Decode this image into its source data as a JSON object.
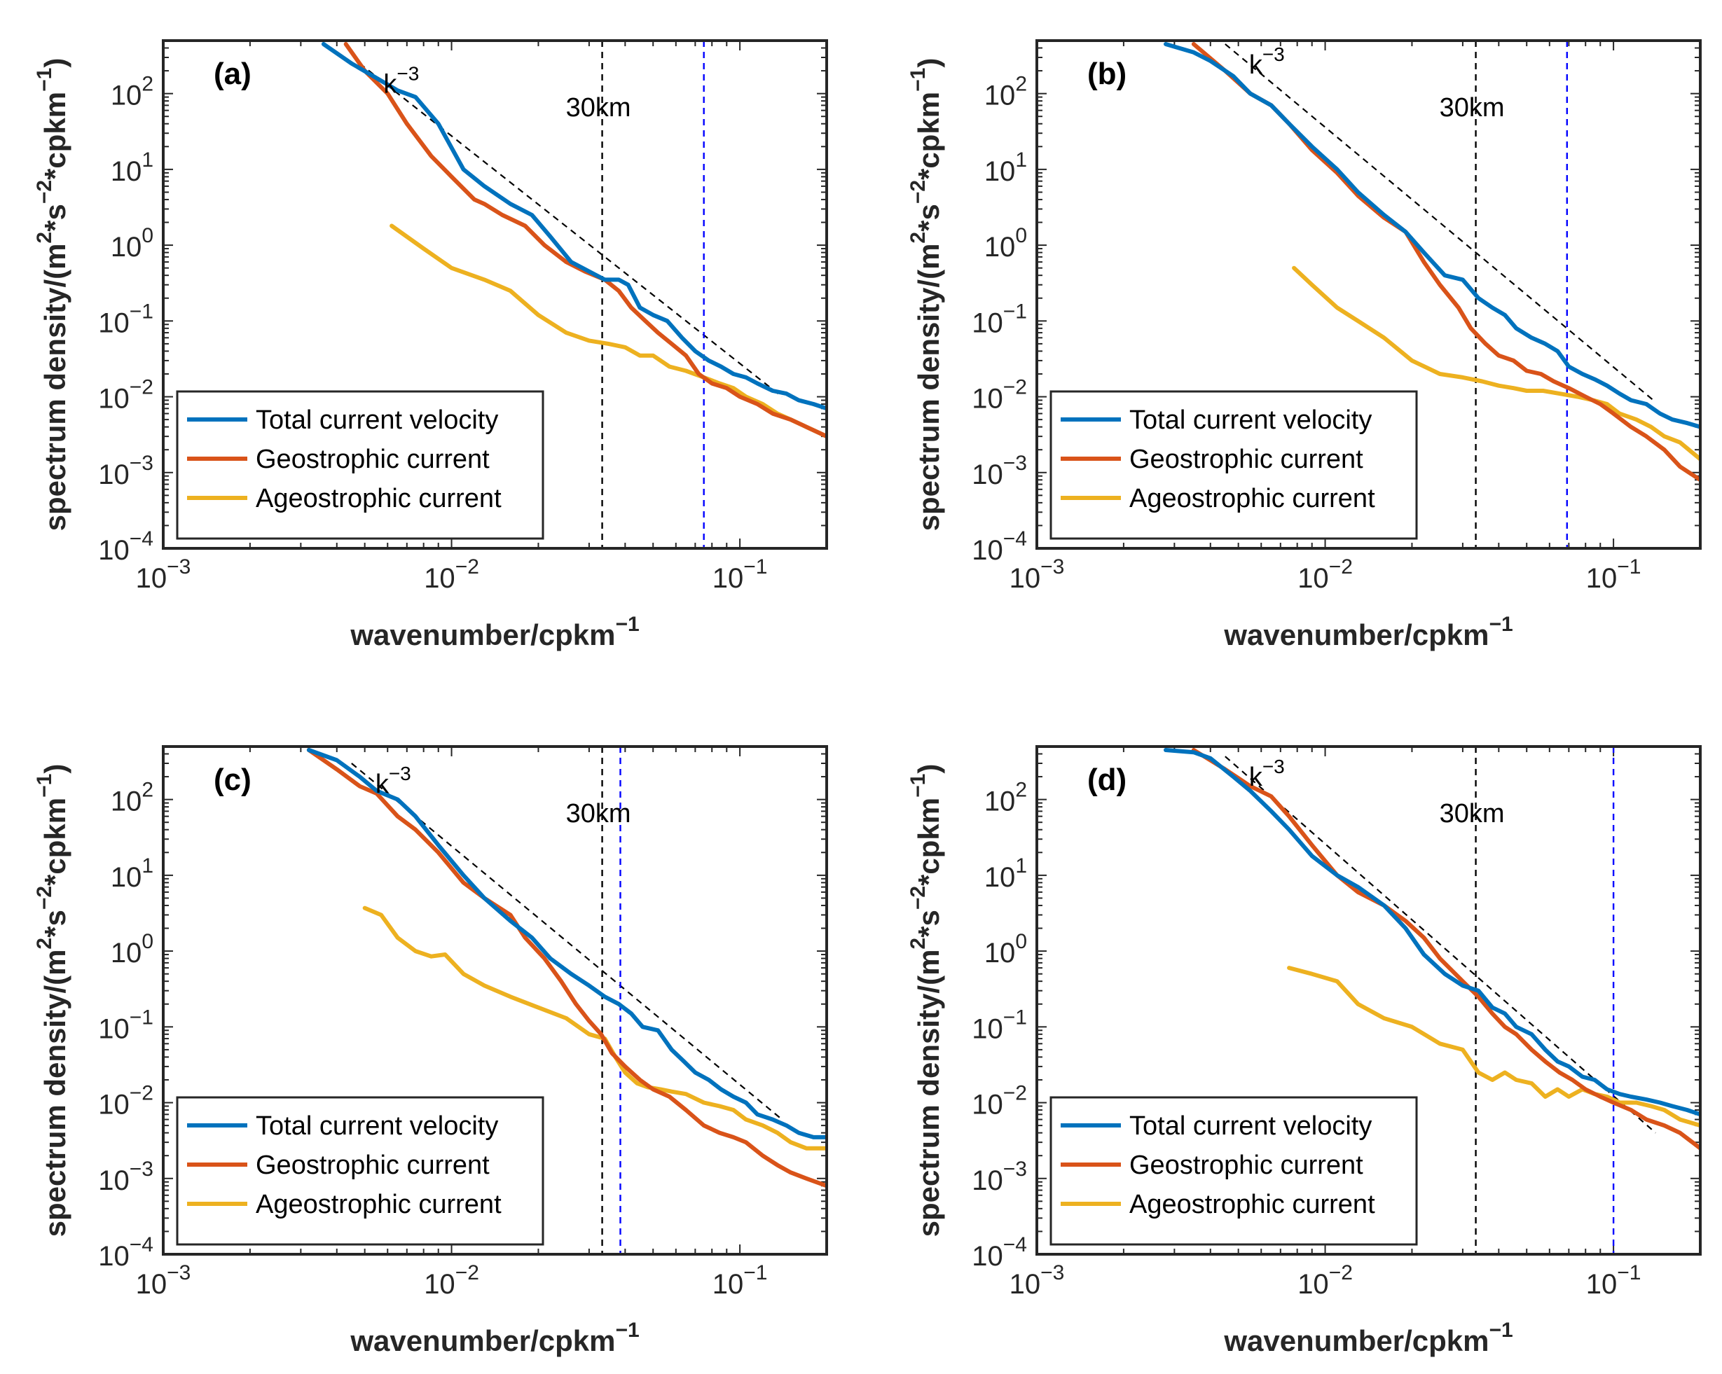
{
  "colors": {
    "total": "#0072BD",
    "geostrophic": "#D95319",
    "ageostrophic": "#EDB120",
    "ref_line": "#000000",
    "scale_line_blue": "#0000FF"
  },
  "axes_text": {
    "xlabel_main": "wavenumber/cpkm",
    "xlabel_sup": "−1",
    "ylabel_parts": [
      "spectrum density/(m",
      "2",
      "*s",
      "−2",
      "*cpkm",
      "−1",
      ")"
    ],
    "x_ticks": [
      {
        "base": "10",
        "exp": "−3"
      },
      {
        "base": "10",
        "exp": "−2"
      },
      {
        "base": "10",
        "exp": "−1"
      }
    ],
    "y_ticks": [
      {
        "base": "10",
        "exp": "−4"
      },
      {
        "base": "10",
        "exp": "−3"
      },
      {
        "base": "10",
        "exp": "−2"
      },
      {
        "base": "10",
        "exp": "−1"
      },
      {
        "base": "10",
        "exp": "0"
      },
      {
        "base": "10",
        "exp": "1"
      },
      {
        "base": "10",
        "exp": "2"
      }
    ]
  },
  "legend": {
    "total": "Total current velocity",
    "geostrophic": "Geostrophic current",
    "ageostrophic": "Ageostrophic current"
  },
  "annotations": {
    "slope_base": "k",
    "slope_exp": "−3",
    "scale_label": "30km"
  },
  "chart_data": [
    {
      "type": "line",
      "panel_label": "(a)",
      "xscale": "log",
      "yscale": "log",
      "xlim": [
        0.001,
        0.2
      ],
      "ylim": [
        0.0001,
        500
      ],
      "ref_slope": {
        "exponent": -3,
        "x": [
          0.0048,
          0.14
        ],
        "y": [
          250,
          0.01
        ]
      },
      "vlines": [
        {
          "x": 0.0333,
          "style": "dashed",
          "color": "black"
        },
        {
          "x": 0.075,
          "style": "dashed",
          "color": "blue"
        }
      ],
      "series": [
        {
          "name": "Total current velocity",
          "x": [
            0.0036,
            0.0045,
            0.0055,
            0.0065,
            0.0075,
            0.009,
            0.011,
            0.013,
            0.016,
            0.019,
            0.022,
            0.026,
            0.03,
            0.034,
            0.038,
            0.041,
            0.045,
            0.05,
            0.056,
            0.063,
            0.07,
            0.078,
            0.086,
            0.095,
            0.105,
            0.115,
            0.13,
            0.145,
            0.16,
            0.18,
            0.2
          ],
          "y": [
            450,
            250,
            160,
            110,
            90,
            40,
            10,
            6,
            3.5,
            2.5,
            1.3,
            0.6,
            0.45,
            0.35,
            0.35,
            0.3,
            0.15,
            0.12,
            0.1,
            0.06,
            0.04,
            0.03,
            0.025,
            0.02,
            0.018,
            0.015,
            0.012,
            0.011,
            0.009,
            0.008,
            0.007
          ]
        },
        {
          "name": "Geostrophic current",
          "x": [
            0.0043,
            0.005,
            0.006,
            0.007,
            0.0085,
            0.01,
            0.012,
            0.013,
            0.015,
            0.018,
            0.021,
            0.025,
            0.029,
            0.034,
            0.038,
            0.042,
            0.047,
            0.052,
            0.058,
            0.065,
            0.072,
            0.08,
            0.09,
            0.1,
            0.115,
            0.13,
            0.15,
            0.17,
            0.2
          ],
          "y": [
            450,
            200,
            100,
            40,
            15,
            8,
            4,
            3.5,
            2.5,
            1.8,
            1,
            0.6,
            0.45,
            0.35,
            0.25,
            0.15,
            0.1,
            0.07,
            0.05,
            0.035,
            0.02,
            0.015,
            0.013,
            0.01,
            0.008,
            0.006,
            0.005,
            0.004,
            0.003
          ]
        },
        {
          "name": "Ageostrophic current",
          "x": [
            0.0062,
            0.008,
            0.01,
            0.013,
            0.016,
            0.02,
            0.025,
            0.03,
            0.035,
            0.04,
            0.045,
            0.05,
            0.057,
            0.065,
            0.075,
            0.085,
            0.095,
            0.105,
            0.12,
            0.135,
            0.15,
            0.17,
            0.2
          ],
          "y": [
            1.8,
            0.9,
            0.5,
            0.35,
            0.25,
            0.12,
            0.07,
            0.055,
            0.05,
            0.045,
            0.035,
            0.035,
            0.025,
            0.022,
            0.018,
            0.015,
            0.013,
            0.01,
            0.008,
            0.006,
            0.005,
            0.004,
            0.003
          ]
        }
      ]
    },
    {
      "type": "line",
      "panel_label": "(b)",
      "xscale": "log",
      "yscale": "log",
      "xlim": [
        0.001,
        0.2
      ],
      "ylim": [
        0.0001,
        500
      ],
      "ref_slope": {
        "exponent": -3,
        "x": [
          0.0045,
          0.14
        ],
        "y": [
          450,
          0.0085
        ]
      },
      "vlines": [
        {
          "x": 0.0333,
          "style": "dashed",
          "color": "black"
        },
        {
          "x": 0.069,
          "style": "dashed",
          "color": "blue"
        }
      ],
      "series": [
        {
          "name": "Total current velocity",
          "x": [
            0.0028,
            0.0035,
            0.004,
            0.0048,
            0.0055,
            0.0065,
            0.0075,
            0.009,
            0.011,
            0.013,
            0.016,
            0.019,
            0.022,
            0.026,
            0.03,
            0.034,
            0.038,
            0.042,
            0.046,
            0.052,
            0.058,
            0.064,
            0.07,
            0.078,
            0.086,
            0.095,
            0.105,
            0.115,
            0.13,
            0.145,
            0.16,
            0.18,
            0.2
          ],
          "y": [
            450,
            350,
            270,
            170,
            100,
            70,
            40,
            20,
            10,
            5,
            2.5,
            1.5,
            0.8,
            0.4,
            0.35,
            0.2,
            0.15,
            0.12,
            0.08,
            0.06,
            0.05,
            0.04,
            0.025,
            0.02,
            0.017,
            0.014,
            0.011,
            0.009,
            0.008,
            0.006,
            0.005,
            0.0045,
            0.004
          ]
        },
        {
          "name": "Geostrophic current",
          "x": [
            0.0035,
            0.0045,
            0.0055,
            0.0065,
            0.0075,
            0.009,
            0.011,
            0.013,
            0.016,
            0.019,
            0.022,
            0.025,
            0.029,
            0.032,
            0.036,
            0.04,
            0.045,
            0.05,
            0.056,
            0.062,
            0.07,
            0.08,
            0.09,
            0.1,
            0.115,
            0.13,
            0.15,
            0.17,
            0.2
          ],
          "y": [
            450,
            200,
            100,
            70,
            40,
            18,
            9,
            4.5,
            2.3,
            1.5,
            0.6,
            0.3,
            0.15,
            0.08,
            0.05,
            0.035,
            0.03,
            0.022,
            0.02,
            0.016,
            0.013,
            0.01,
            0.008,
            0.006,
            0.004,
            0.003,
            0.002,
            0.0012,
            0.0008
          ]
        },
        {
          "name": "Ageostrophic current",
          "x": [
            0.0078,
            0.009,
            0.011,
            0.013,
            0.016,
            0.02,
            0.025,
            0.03,
            0.035,
            0.04,
            0.045,
            0.05,
            0.057,
            0.065,
            0.075,
            0.085,
            0.095,
            0.105,
            0.12,
            0.135,
            0.15,
            0.17,
            0.2
          ],
          "y": [
            0.5,
            0.3,
            0.15,
            0.1,
            0.06,
            0.03,
            0.02,
            0.018,
            0.016,
            0.014,
            0.013,
            0.012,
            0.012,
            0.011,
            0.01,
            0.009,
            0.008,
            0.006,
            0.005,
            0.004,
            0.003,
            0.0025,
            0.0015
          ]
        }
      ]
    },
    {
      "type": "line",
      "panel_label": "(c)",
      "xscale": "log",
      "yscale": "log",
      "xlim": [
        0.001,
        0.2
      ],
      "ylim": [
        0.0001,
        500
      ],
      "ref_slope": {
        "exponent": -3,
        "x": [
          0.0045,
          0.14
        ],
        "y": [
          300,
          0.006
        ]
      },
      "vlines": [
        {
          "x": 0.0333,
          "style": "dashed",
          "color": "black"
        },
        {
          "x": 0.0385,
          "style": "dashed",
          "color": "blue"
        }
      ],
      "series": [
        {
          "name": "Total current velocity",
          "x": [
            0.0032,
            0.004,
            0.0048,
            0.0055,
            0.0065,
            0.0075,
            0.009,
            0.011,
            0.013,
            0.016,
            0.019,
            0.022,
            0.026,
            0.03,
            0.034,
            0.038,
            0.042,
            0.046,
            0.052,
            0.058,
            0.064,
            0.07,
            0.078,
            0.086,
            0.095,
            0.105,
            0.115,
            0.13,
            0.145,
            0.16,
            0.18,
            0.2
          ],
          "y": [
            450,
            330,
            200,
            130,
            100,
            60,
            25,
            10,
            5,
            2.5,
            1.5,
            0.8,
            0.5,
            0.35,
            0.25,
            0.2,
            0.15,
            0.1,
            0.09,
            0.05,
            0.035,
            0.025,
            0.02,
            0.015,
            0.012,
            0.01,
            0.007,
            0.006,
            0.005,
            0.004,
            0.0035,
            0.0035
          ]
        },
        {
          "name": "Geostrophic current",
          "x": [
            0.0032,
            0.004,
            0.0048,
            0.0055,
            0.0065,
            0.0075,
            0.009,
            0.011,
            0.013,
            0.016,
            0.018,
            0.021,
            0.024,
            0.027,
            0.03,
            0.033,
            0.036,
            0.04,
            0.045,
            0.05,
            0.057,
            0.065,
            0.075,
            0.085,
            0.095,
            0.105,
            0.12,
            0.135,
            0.15,
            0.17,
            0.2
          ],
          "y": [
            450,
            250,
            150,
            120,
            60,
            40,
            20,
            8,
            5,
            3,
            1.5,
            0.8,
            0.4,
            0.2,
            0.12,
            0.08,
            0.045,
            0.03,
            0.02,
            0.015,
            0.012,
            0.008,
            0.005,
            0.004,
            0.0035,
            0.003,
            0.002,
            0.0015,
            0.0012,
            0.001,
            0.0008
          ]
        },
        {
          "name": "Ageostrophic current",
          "x": [
            0.005,
            0.0057,
            0.0065,
            0.0075,
            0.0085,
            0.0095,
            0.011,
            0.013,
            0.016,
            0.02,
            0.025,
            0.03,
            0.034,
            0.037,
            0.04,
            0.044,
            0.048,
            0.053,
            0.058,
            0.065,
            0.075,
            0.085,
            0.095,
            0.105,
            0.12,
            0.135,
            0.15,
            0.17,
            0.2
          ],
          "y": [
            3.7,
            3,
            1.5,
            1,
            0.85,
            0.9,
            0.5,
            0.35,
            0.25,
            0.18,
            0.13,
            0.08,
            0.07,
            0.04,
            0.025,
            0.018,
            0.016,
            0.015,
            0.014,
            0.013,
            0.01,
            0.009,
            0.008,
            0.006,
            0.005,
            0.004,
            0.003,
            0.0025,
            0.0025
          ]
        }
      ]
    },
    {
      "type": "line",
      "panel_label": "(d)",
      "xscale": "log",
      "yscale": "log",
      "xlim": [
        0.001,
        0.2
      ],
      "ylim": [
        0.0001,
        500
      ],
      "ref_slope": {
        "exponent": -3,
        "x": [
          0.0045,
          0.14
        ],
        "y": [
          370,
          0.004
        ]
      },
      "vlines": [
        {
          "x": 0.0333,
          "style": "dashed",
          "color": "black"
        },
        {
          "x": 0.1,
          "style": "dashed",
          "color": "blue"
        }
      ],
      "series": [
        {
          "name": "Total current velocity",
          "x": [
            0.0028,
            0.0035,
            0.004,
            0.0048,
            0.0055,
            0.0065,
            0.0075,
            0.009,
            0.011,
            0.013,
            0.016,
            0.019,
            0.022,
            0.026,
            0.03,
            0.034,
            0.038,
            0.042,
            0.046,
            0.052,
            0.058,
            0.064,
            0.07,
            0.078,
            0.086,
            0.095,
            0.105,
            0.115,
            0.13,
            0.145,
            0.16,
            0.18,
            0.2
          ],
          "y": [
            450,
            420,
            350,
            200,
            130,
            70,
            40,
            18,
            10,
            7,
            4,
            2,
            0.9,
            0.5,
            0.35,
            0.3,
            0.18,
            0.15,
            0.1,
            0.08,
            0.05,
            0.035,
            0.03,
            0.022,
            0.02,
            0.015,
            0.013,
            0.012,
            0.011,
            0.01,
            0.009,
            0.008,
            0.007
          ]
        },
        {
          "name": "Geostrophic current",
          "x": [
            0.0035,
            0.0045,
            0.0055,
            0.0065,
            0.0075,
            0.009,
            0.011,
            0.013,
            0.016,
            0.019,
            0.022,
            0.025,
            0.03,
            0.034,
            0.038,
            0.042,
            0.046,
            0.052,
            0.058,
            0.065,
            0.072,
            0.08,
            0.09,
            0.1,
            0.115,
            0.13,
            0.15,
            0.17,
            0.2
          ],
          "y": [
            450,
            250,
            150,
            110,
            60,
            25,
            10,
            6,
            4,
            2.5,
            1.5,
            0.8,
            0.4,
            0.25,
            0.15,
            0.1,
            0.08,
            0.05,
            0.035,
            0.025,
            0.02,
            0.015,
            0.012,
            0.01,
            0.008,
            0.006,
            0.005,
            0.004,
            0.0025
          ]
        },
        {
          "name": "Ageostrophic current",
          "x": [
            0.0075,
            0.009,
            0.011,
            0.013,
            0.016,
            0.02,
            0.025,
            0.03,
            0.034,
            0.038,
            0.042,
            0.046,
            0.052,
            0.058,
            0.064,
            0.07,
            0.078,
            0.086,
            0.095,
            0.105,
            0.12,
            0.135,
            0.15,
            0.17,
            0.2
          ],
          "y": [
            0.6,
            0.5,
            0.4,
            0.2,
            0.13,
            0.1,
            0.06,
            0.05,
            0.025,
            0.02,
            0.025,
            0.02,
            0.018,
            0.012,
            0.015,
            0.012,
            0.015,
            0.013,
            0.012,
            0.01,
            0.01,
            0.009,
            0.008,
            0.006,
            0.005
          ]
        }
      ]
    }
  ]
}
